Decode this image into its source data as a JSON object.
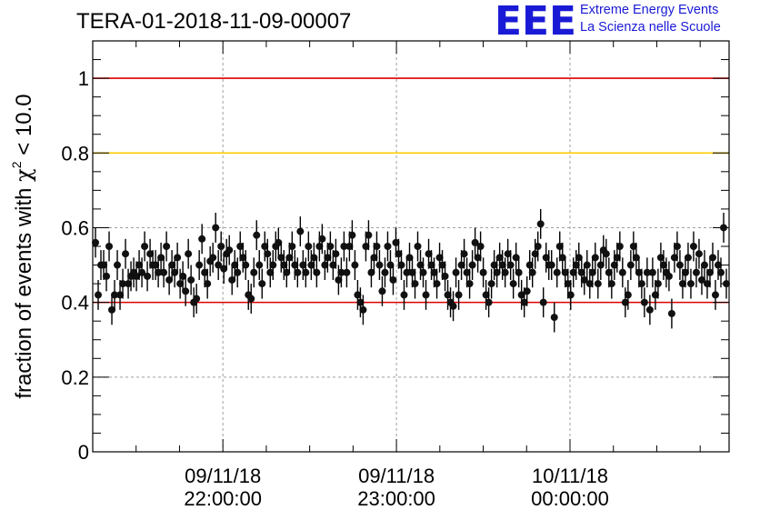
{
  "chart_data": {
    "type": "scatter",
    "title": "TERA-01-2018-11-09-00007",
    "ylabel": "fraction of events with",
    "ylabel_chi": "χ",
    "ylabel_exp": "2",
    "ylabel_tail": "< 10.0",
    "xlabel": "",
    "ylim": [
      0,
      1.1
    ],
    "yticks": [
      0,
      0.2,
      0.4,
      0.6,
      0.8,
      1
    ],
    "ytick_labels": [
      "0",
      "0.2",
      "0.4",
      "0.6",
      "0.8",
      "1"
    ],
    "xlim": [
      "09/11/18 21:15:00",
      "10/11/18 00:55:00"
    ],
    "xticks": [
      {
        "date": "09/11/18",
        "time": "22:00:00"
      },
      {
        "date": "09/11/18",
        "time": "23:00:00"
      },
      {
        "date": "10/11/18",
        "time": "00:00:00"
      }
    ],
    "grid": true,
    "reference_lines": [
      {
        "y": 1.0,
        "color": "#e00000"
      },
      {
        "y": 0.8,
        "color": "#ffcc00"
      },
      {
        "y": 0.4,
        "color": "#e00000"
      }
    ],
    "error_bar": 0.04,
    "values": [
      0.56,
      0.42,
      0.5,
      0.5,
      0.47,
      0.55,
      0.38,
      0.42,
      0.5,
      0.42,
      0.45,
      0.53,
      0.45,
      0.47,
      0.48,
      0.47,
      0.5,
      0.48,
      0.55,
      0.47,
      0.53,
      0.5,
      0.5,
      0.48,
      0.52,
      0.48,
      0.55,
      0.46,
      0.5,
      0.48,
      0.52,
      0.45,
      0.47,
      0.43,
      0.53,
      0.46,
      0.4,
      0.41,
      0.5,
      0.57,
      0.48,
      0.45,
      0.51,
      0.52,
      0.6,
      0.5,
      0.55,
      0.49,
      0.53,
      0.54,
      0.46,
      0.5,
      0.48,
      0.55,
      0.52,
      0.5,
      0.42,
      0.41,
      0.48,
      0.58,
      0.5,
      0.45,
      0.55,
      0.53,
      0.48,
      0.5,
      0.55,
      0.56,
      0.52,
      0.5,
      0.48,
      0.52,
      0.55,
      0.5,
      0.48,
      0.59,
      0.5,
      0.48,
      0.55,
      0.5,
      0.52,
      0.48,
      0.55,
      0.57,
      0.5,
      0.52,
      0.55,
      0.5,
      0.53,
      0.46,
      0.48,
      0.55,
      0.48,
      0.55,
      0.58,
      0.5,
      0.42,
      0.4,
      0.38,
      0.55,
      0.58,
      0.48,
      0.52,
      0.55,
      0.5,
      0.43,
      0.48,
      0.55,
      0.5,
      0.46,
      0.56,
      0.53,
      0.5,
      0.42,
      0.48,
      0.52,
      0.48,
      0.45,
      0.55,
      0.5,
      0.48,
      0.42,
      0.53,
      0.5,
      0.48,
      0.45,
      0.52,
      0.5,
      0.47,
      0.42,
      0.4,
      0.39,
      0.48,
      0.42,
      0.5,
      0.53,
      0.48,
      0.45,
      0.5,
      0.56,
      0.52,
      0.55,
      0.48,
      0.42,
      0.4,
      0.45,
      0.5,
      0.48,
      0.52,
      0.5,
      0.48,
      0.53,
      0.5,
      0.45,
      0.52,
      0.48,
      0.42,
      0.4,
      0.43,
      0.5,
      0.48,
      0.53,
      0.55,
      0.61,
      0.4,
      0.52,
      0.5,
      0.5,
      0.36,
      0.48,
      0.55,
      0.52,
      0.48,
      0.45,
      0.42,
      0.48,
      0.5,
      0.52,
      0.48,
      0.46,
      0.5,
      0.45,
      0.48,
      0.52,
      0.45,
      0.5,
      0.54,
      0.53,
      0.48,
      0.45,
      0.5,
      0.52,
      0.55,
      0.48,
      0.4,
      0.42,
      0.5,
      0.55,
      0.52,
      0.48,
      0.45,
      0.4,
      0.48,
      0.38,
      0.48,
      0.42,
      0.45,
      0.52,
      0.5,
      0.48,
      0.47,
      0.37,
      0.52,
      0.55,
      0.5,
      0.45,
      0.48,
      0.52,
      0.45,
      0.55,
      0.48,
      0.53,
      0.46,
      0.5,
      0.45,
      0.48,
      0.52,
      0.42,
      0.5,
      0.48,
      0.6,
      0.45
    ]
  },
  "logo": {
    "mark": "EEE",
    "line1": "Extreme Energy Events",
    "line2": "La Scienza nelle Scuole",
    "color": "#1a1ad6"
  }
}
